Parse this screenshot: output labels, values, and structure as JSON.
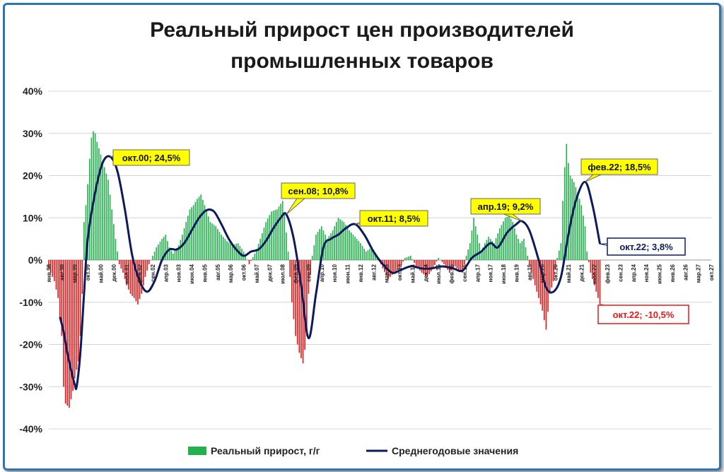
{
  "chart_data": {
    "type": "bar",
    "title_lines": [
      "Реальный прирост цен производителей",
      "промышленных товаров"
    ],
    "ylim": [
      -40,
      40
    ],
    "yticks": [
      40,
      30,
      20,
      10,
      0,
      -10,
      -20,
      -30,
      -40
    ],
    "ytick_labels": [
      "40%",
      "30%",
      "20%",
      "10%",
      "0%",
      "-10%",
      "-20%",
      "-30%",
      "-40%"
    ],
    "x_range": [
      "1998-01",
      "2027-10"
    ],
    "x_ticks": [
      {
        "date": "1998-01",
        "label": "янв.98"
      },
      {
        "date": "1998-08",
        "label": "авг.98"
      },
      {
        "date": "1999-03",
        "label": "мар.99"
      },
      {
        "date": "1999-10",
        "label": "окт.99"
      },
      {
        "date": "2000-05",
        "label": "май.00"
      },
      {
        "date": "2000-12",
        "label": "дек.00"
      },
      {
        "date": "2001-07",
        "label": "июл.01"
      },
      {
        "date": "2002-02",
        "label": "фев.02"
      },
      {
        "date": "2002-09",
        "label": "сен.02"
      },
      {
        "date": "2003-04",
        "label": "апр.03"
      },
      {
        "date": "2003-11",
        "label": "ноя.03"
      },
      {
        "date": "2004-06",
        "label": "июн.04"
      },
      {
        "date": "2005-01",
        "label": "янв.05"
      },
      {
        "date": "2005-08",
        "label": "авг.05"
      },
      {
        "date": "2006-03",
        "label": "мар.06"
      },
      {
        "date": "2006-10",
        "label": "окт.06"
      },
      {
        "date": "2007-05",
        "label": "май.07"
      },
      {
        "date": "2007-12",
        "label": "дек.07"
      },
      {
        "date": "2008-07",
        "label": "июл.08"
      },
      {
        "date": "2009-02",
        "label": "фев.09"
      },
      {
        "date": "2009-09",
        "label": "сен.09"
      },
      {
        "date": "2010-04",
        "label": "апр.10"
      },
      {
        "date": "2010-11",
        "label": "ноя.10"
      },
      {
        "date": "2011-06",
        "label": "июн.11"
      },
      {
        "date": "2012-01",
        "label": "янв.12"
      },
      {
        "date": "2012-08",
        "label": "авг.12"
      },
      {
        "date": "2013-03",
        "label": "мар.13"
      },
      {
        "date": "2013-10",
        "label": "окт.13"
      },
      {
        "date": "2014-05",
        "label": "май.14"
      },
      {
        "date": "2014-12",
        "label": "дек.14"
      },
      {
        "date": "2015-07",
        "label": "июл.15"
      },
      {
        "date": "2016-02",
        "label": "фев.16"
      },
      {
        "date": "2016-09",
        "label": "сен.16"
      },
      {
        "date": "2017-04",
        "label": "апр.17"
      },
      {
        "date": "2017-11",
        "label": "ноя.17"
      },
      {
        "date": "2018-06",
        "label": "июн.18"
      },
      {
        "date": "2019-01",
        "label": "янв.19"
      },
      {
        "date": "2019-08",
        "label": "авг.19"
      },
      {
        "date": "2020-03",
        "label": "мар.20"
      },
      {
        "date": "2020-10",
        "label": "окт.20"
      },
      {
        "date": "2021-05",
        "label": "май.21"
      },
      {
        "date": "2021-12",
        "label": "дек.21"
      },
      {
        "date": "2022-07",
        "label": "июл.22"
      },
      {
        "date": "2023-02",
        "label": "фев.23"
      },
      {
        "date": "2023-09",
        "label": "сен.23"
      },
      {
        "date": "2024-04",
        "label": "апр.24"
      },
      {
        "date": "2024-11",
        "label": "ноя.24"
      },
      {
        "date": "2025-06",
        "label": "июн.25"
      },
      {
        "date": "2026-01",
        "label": "янв.26"
      },
      {
        "date": "2026-08",
        "label": "авг.26"
      },
      {
        "date": "2027-03",
        "label": "мар.27"
      },
      {
        "date": "2027-10",
        "label": "окт.27"
      }
    ],
    "bars_anchors": [
      [
        "1998-01",
        -2
      ],
      [
        "1998-04",
        -5
      ],
      [
        "1998-06",
        -9
      ],
      [
        "1998-08",
        -18
      ],
      [
        "1998-09",
        -30
      ],
      [
        "1998-10",
        -34
      ],
      [
        "1998-12",
        -35
      ],
      [
        "1999-02",
        -31
      ],
      [
        "1999-03",
        -28
      ],
      [
        "1999-05",
        -24
      ],
      [
        "1999-06",
        -18
      ],
      [
        "1999-07",
        -8
      ],
      [
        "1999-08",
        9
      ],
      [
        "1999-09",
        13
      ],
      [
        "1999-10",
        18
      ],
      [
        "1999-11",
        24
      ],
      [
        "1999-12",
        29
      ],
      [
        "2000-01",
        30.5
      ],
      [
        "2000-02",
        30
      ],
      [
        "2000-03",
        28
      ],
      [
        "2000-05",
        25
      ],
      [
        "2000-07",
        22
      ],
      [
        "2000-09",
        19
      ],
      [
        "2000-11",
        12
      ],
      [
        "2001-01",
        5
      ],
      [
        "2001-03",
        -1
      ],
      [
        "2001-05",
        -3
      ],
      [
        "2001-07",
        -6
      ],
      [
        "2001-09",
        -8
      ],
      [
        "2001-11",
        -9
      ],
      [
        "2002-01",
        -10.5
      ],
      [
        "2002-03",
        -8
      ],
      [
        "2002-05",
        -4
      ],
      [
        "2002-07",
        -1
      ],
      [
        "2002-09",
        1
      ],
      [
        "2002-11",
        3
      ],
      [
        "2003-02",
        5
      ],
      [
        "2003-04",
        6
      ],
      [
        "2003-06",
        3
      ],
      [
        "2003-08",
        1.5
      ],
      [
        "2003-11",
        3.5
      ],
      [
        "2004-01",
        6
      ],
      [
        "2004-03",
        9
      ],
      [
        "2004-05",
        12
      ],
      [
        "2004-07",
        13
      ],
      [
        "2004-09",
        14.5
      ],
      [
        "2004-11",
        15.5
      ],
      [
        "2005-01",
        13
      ],
      [
        "2005-04",
        9
      ],
      [
        "2005-07",
        8
      ],
      [
        "2005-10",
        6
      ],
      [
        "2006-01",
        4.5
      ],
      [
        "2006-04",
        3.5
      ],
      [
        "2006-07",
        4
      ],
      [
        "2006-10",
        2
      ],
      [
        "2007-01",
        -1
      ],
      [
        "2007-04",
        1.5
      ],
      [
        "2007-07",
        5
      ],
      [
        "2007-10",
        9
      ],
      [
        "2008-01",
        11.5
      ],
      [
        "2008-04",
        12
      ],
      [
        "2008-07",
        14
      ],
      [
        "2008-08",
        11
      ],
      [
        "2008-10",
        2
      ],
      [
        "2008-12",
        -10
      ],
      [
        "2009-02",
        -18
      ],
      [
        "2009-04",
        -22
      ],
      [
        "2009-06",
        -24.5
      ],
      [
        "2009-08",
        -18
      ],
      [
        "2009-09",
        -8
      ],
      [
        "2009-11",
        1
      ],
      [
        "2010-01",
        6
      ],
      [
        "2010-04",
        8
      ],
      [
        "2010-07",
        5
      ],
      [
        "2010-10",
        7
      ],
      [
        "2011-01",
        10
      ],
      [
        "2011-04",
        9
      ],
      [
        "2011-07",
        7
      ],
      [
        "2011-10",
        5.5
      ],
      [
        "2012-01",
        4
      ],
      [
        "2012-04",
        2
      ],
      [
        "2012-07",
        3
      ],
      [
        "2012-10",
        1
      ],
      [
        "2013-01",
        -2
      ],
      [
        "2013-04",
        -4.5
      ],
      [
        "2013-07",
        -3
      ],
      [
        "2013-10",
        -2
      ],
      [
        "2014-01",
        0.5
      ],
      [
        "2014-04",
        1
      ],
      [
        "2014-07",
        -1.5
      ],
      [
        "2014-10",
        -3
      ],
      [
        "2015-01",
        -4
      ],
      [
        "2015-04",
        -2
      ],
      [
        "2015-07",
        0.5
      ],
      [
        "2015-10",
        -1
      ],
      [
        "2016-01",
        -3
      ],
      [
        "2016-04",
        -1.5
      ],
      [
        "2016-06",
        -2.5
      ],
      [
        "2016-08",
        -3
      ],
      [
        "2016-10",
        1
      ],
      [
        "2016-12",
        4
      ],
      [
        "2017-02",
        10
      ],
      [
        "2017-04",
        6
      ],
      [
        "2017-06",
        2
      ],
      [
        "2017-08",
        4
      ],
      [
        "2017-10",
        5.5
      ],
      [
        "2018-01",
        4
      ],
      [
        "2018-04",
        7.5
      ],
      [
        "2018-07",
        10
      ],
      [
        "2018-09",
        10.5
      ],
      [
        "2018-11",
        9
      ],
      [
        "2019-01",
        6
      ],
      [
        "2019-03",
        4
      ],
      [
        "2019-05",
        5
      ],
      [
        "2019-07",
        1
      ],
      [
        "2019-09",
        -3
      ],
      [
        "2019-11",
        -6
      ],
      [
        "2020-01",
        -9
      ],
      [
        "2020-03",
        -12
      ],
      [
        "2020-05",
        -16.5
      ],
      [
        "2020-07",
        -8
      ],
      [
        "2020-09",
        -5
      ],
      [
        "2020-11",
        0.5
      ],
      [
        "2021-01",
        4
      ],
      [
        "2021-02",
        14
      ],
      [
        "2021-03",
        22
      ],
      [
        "2021-04",
        27.5
      ],
      [
        "2021-05",
        23
      ],
      [
        "2021-06",
        20
      ],
      [
        "2021-08",
        18.5
      ],
      [
        "2021-10",
        16
      ],
      [
        "2021-12",
        13
      ],
      [
        "2022-02",
        8
      ],
      [
        "2022-03",
        2
      ],
      [
        "2022-05",
        -3
      ],
      [
        "2022-07",
        -6
      ],
      [
        "2022-09",
        -9
      ],
      [
        "2022-10",
        -10.5
      ]
    ],
    "average_series": {
      "name": "Среднегодовые значения",
      "points": [
        [
          "1998-07",
          -13.5
        ],
        [
          "1998-09",
          -17
        ],
        [
          "1998-11",
          -22
        ],
        [
          "1999-01",
          -26
        ],
        [
          "1999-03",
          -29.5
        ],
        [
          "1999-04",
          -30
        ],
        [
          "1999-06",
          -22
        ],
        [
          "1999-08",
          -8
        ],
        [
          "1999-10",
          5
        ],
        [
          "2000-02",
          16
        ],
        [
          "2000-06",
          23
        ],
        [
          "2000-10",
          24.5
        ],
        [
          "2001-02",
          21
        ],
        [
          "2001-06",
          12
        ],
        [
          "2001-10",
          1
        ],
        [
          "2002-02",
          -5
        ],
        [
          "2002-06",
          -7.5
        ],
        [
          "2002-10",
          -5
        ],
        [
          "2003-02",
          0
        ],
        [
          "2003-06",
          2.5
        ],
        [
          "2003-10",
          2.5
        ],
        [
          "2004-02",
          4
        ],
        [
          "2004-06",
          7
        ],
        [
          "2004-10",
          10
        ],
        [
          "2005-02",
          11.8
        ],
        [
          "2005-06",
          11.5
        ],
        [
          "2005-10",
          8.5
        ],
        [
          "2006-02",
          5
        ],
        [
          "2006-06",
          2.5
        ],
        [
          "2006-10",
          1
        ],
        [
          "2007-02",
          2
        ],
        [
          "2007-06",
          2.5
        ],
        [
          "2007-10",
          4.5
        ],
        [
          "2008-02",
          7.5
        ],
        [
          "2008-06",
          10
        ],
        [
          "2008-09",
          10.8
        ],
        [
          "2009-01",
          5
        ],
        [
          "2009-05",
          -6
        ],
        [
          "2009-09",
          -18.5
        ],
        [
          "2010-01",
          -8
        ],
        [
          "2010-05",
          3
        ],
        [
          "2010-09",
          5
        ],
        [
          "2011-01",
          6
        ],
        [
          "2011-05",
          7.5
        ],
        [
          "2011-10",
          8.5
        ],
        [
          "2012-03",
          6
        ],
        [
          "2012-08",
          2
        ],
        [
          "2013-01",
          -1
        ],
        [
          "2013-06",
          -3
        ],
        [
          "2013-10",
          -2.5
        ],
        [
          "2014-04",
          -1.5
        ],
        [
          "2014-10",
          -2
        ],
        [
          "2015-03",
          -2
        ],
        [
          "2015-09",
          -1.5
        ],
        [
          "2016-03",
          -2
        ],
        [
          "2016-08",
          -2.5
        ],
        [
          "2017-01",
          0.5
        ],
        [
          "2017-06",
          2
        ],
        [
          "2017-11",
          4
        ],
        [
          "2018-03",
          3
        ],
        [
          "2018-08",
          6.5
        ],
        [
          "2019-01",
          8.5
        ],
        [
          "2019-04",
          9.2
        ],
        [
          "2019-08",
          7
        ],
        [
          "2020-01",
          0
        ],
        [
          "2020-05",
          -6.5
        ],
        [
          "2020-09",
          -7.5
        ],
        [
          "2021-01",
          -4
        ],
        [
          "2021-05",
          6
        ],
        [
          "2021-09",
          14
        ],
        [
          "2022-02",
          18.5
        ],
        [
          "2022-06",
          13
        ],
        [
          "2022-10",
          3.8
        ]
      ]
    },
    "annotations": [
      {
        "text": "окт.00; 24,5%",
        "date": "2000-10",
        "value": 24.5,
        "style": "yellow"
      },
      {
        "text": "сен.08; 10,8%",
        "date": "2008-09",
        "value": 10.8,
        "style": "yellow"
      },
      {
        "text": "окт.11; 8,5%",
        "date": "2011-10",
        "value": 8.5,
        "style": "yellow"
      },
      {
        "text": "апр.19; 9,2%",
        "date": "2019-04",
        "value": 9.2,
        "style": "yellow"
      },
      {
        "text": "фев.22; 18,5%",
        "date": "2022-02",
        "value": 18.5,
        "style": "yellow"
      },
      {
        "text": "окт.22; 3,8%",
        "date": "2022-10",
        "value": 3.8,
        "style": "navy"
      },
      {
        "text": "окт.22; -10,5%",
        "date": "2022-10",
        "value": -10.5,
        "style": "red"
      }
    ],
    "legend": [
      {
        "name": "Реальный прирост, г/г",
        "kind": "bar"
      },
      {
        "name": "Среднегодовые значения",
        "kind": "line"
      }
    ],
    "colors": {
      "positive": "#22b14c",
      "negative": "#e81818",
      "average": "#0d1a5c",
      "grid": "#d4d4d4",
      "callout_fill": "#ffff00",
      "frame": "#2e75b6"
    },
    "grid": true,
    "legend_position": "bottom"
  }
}
